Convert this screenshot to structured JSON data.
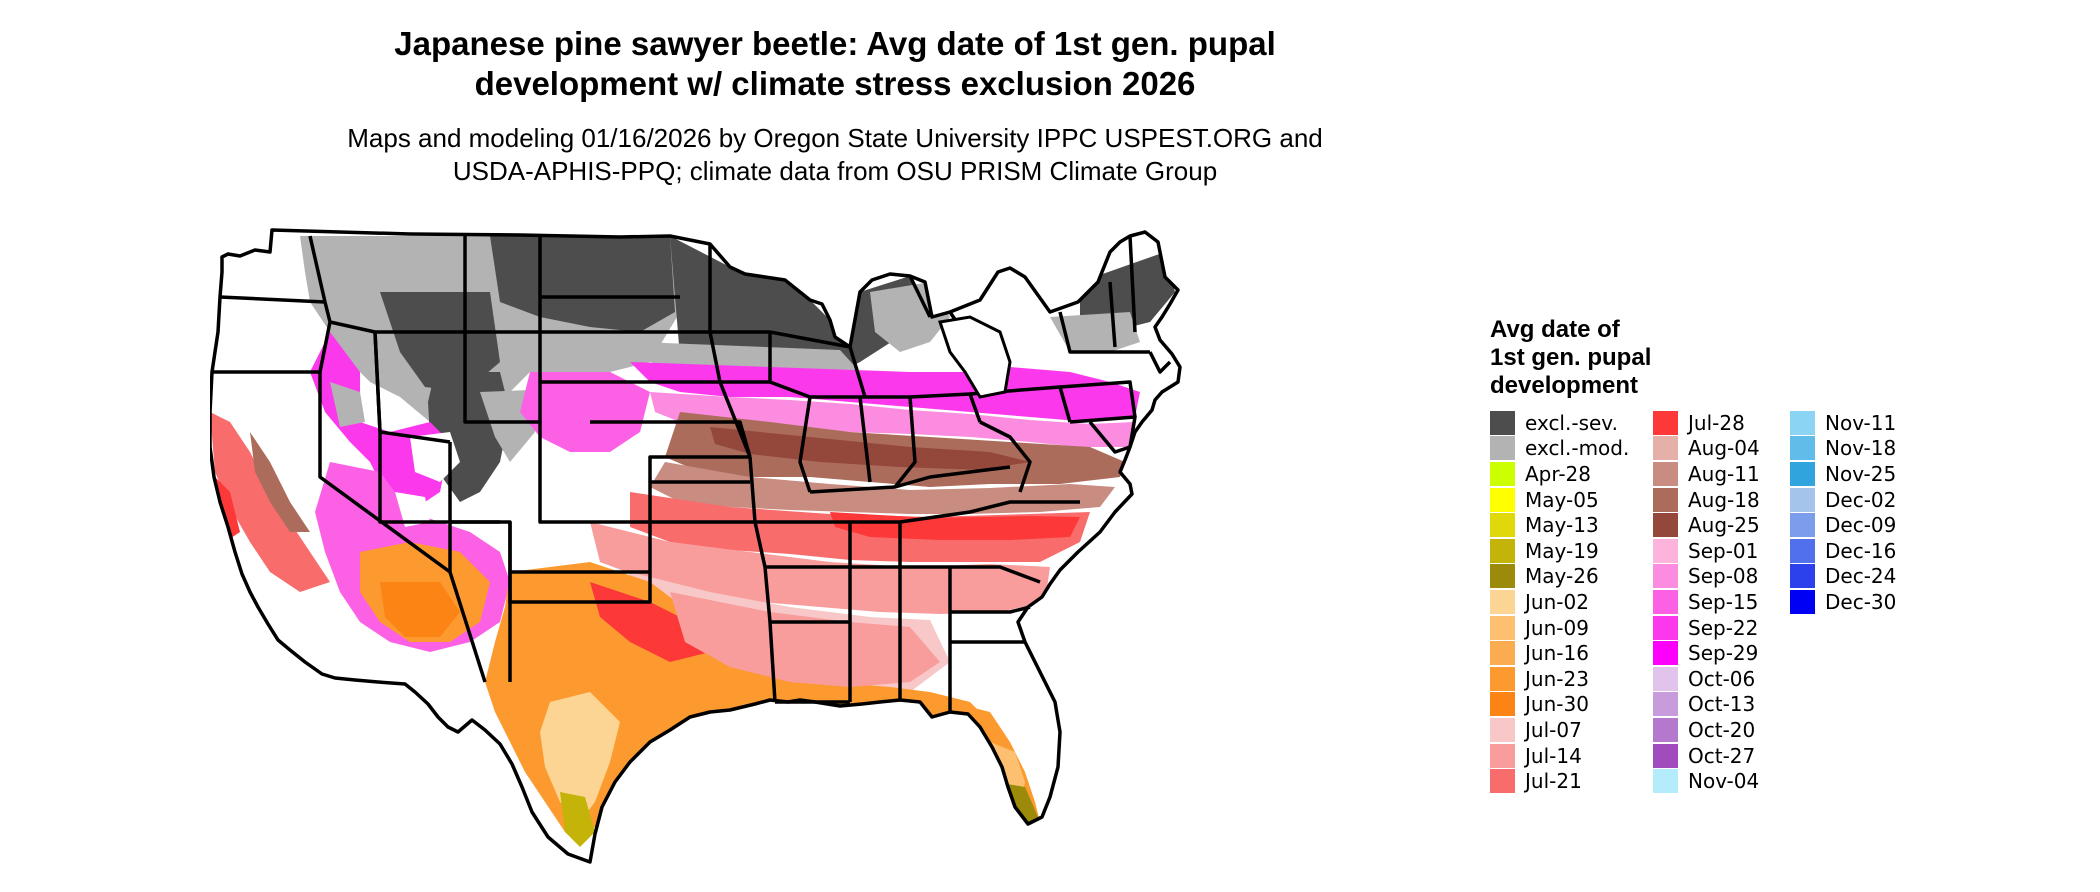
{
  "title_line1": "Japanese pine sawyer beetle: Avg date of 1st gen. pupal",
  "title_line2": "development w/ climate stress exclusion 2026",
  "subtitle_line1": "Maps and modeling 01/16/2026 by Oregon State University IPPC USPEST.ORG and",
  "subtitle_line2": "USDA-APHIS-PPQ; climate data from OSU PRISM Climate Group",
  "legend": {
    "title_lines": [
      "Avg date of",
      "1st gen. pupal",
      "development"
    ],
    "columns": [
      [
        {
          "label": "excl.-sev.",
          "color": "#4d4d4d"
        },
        {
          "label": "excl.-mod.",
          "color": "#b3b3b3"
        },
        {
          "label": "Apr-28",
          "color": "#ccff00"
        },
        {
          "label": "May-05",
          "color": "#ffff00"
        },
        {
          "label": "May-13",
          "color": "#e0d80a"
        },
        {
          "label": "May-19",
          "color": "#c4b40a"
        },
        {
          "label": "May-26",
          "color": "#9c8a0a"
        },
        {
          "label": "Jun-02",
          "color": "#fcd494"
        },
        {
          "label": "Jun-09",
          "color": "#fcc070"
        },
        {
          "label": "Jun-16",
          "color": "#fcac50"
        },
        {
          "label": "Jun-23",
          "color": "#fc9a30"
        },
        {
          "label": "Jun-30",
          "color": "#fc8414"
        },
        {
          "label": "Jul-07",
          "color": "#f8c8c8"
        },
        {
          "label": "Jul-14",
          "color": "#f89c9c"
        },
        {
          "label": "Jul-21",
          "color": "#f86c6c"
        }
      ],
      [
        {
          "label": "Jul-28",
          "color": "#fc3838"
        },
        {
          "label": "Aug-04",
          "color": "#e4b0a8"
        },
        {
          "label": "Aug-11",
          "color": "#c88c80"
        },
        {
          "label": "Aug-18",
          "color": "#ac6c5c"
        },
        {
          "label": "Aug-25",
          "color": "#94483c"
        },
        {
          "label": "Sep-01",
          "color": "#fcb4dc"
        },
        {
          "label": "Sep-08",
          "color": "#fc8ce0"
        },
        {
          "label": "Sep-15",
          "color": "#fc60e4"
        },
        {
          "label": "Sep-22",
          "color": "#fc38ec"
        },
        {
          "label": "Sep-29",
          "color": "#fc00fc"
        },
        {
          "label": "Oct-06",
          "color": "#e0c4ec"
        },
        {
          "label": "Oct-13",
          "color": "#c89cdc"
        },
        {
          "label": "Oct-20",
          "color": "#b478cc"
        },
        {
          "label": "Oct-27",
          "color": "#a04cbc"
        },
        {
          "label": "Nov-04",
          "color": "#b4ecfc"
        }
      ],
      [
        {
          "label": "Nov-11",
          "color": "#8cd4f4"
        },
        {
          "label": "Nov-18",
          "color": "#60bce8"
        },
        {
          "label": "Nov-25",
          "color": "#30a4dc"
        },
        {
          "label": "Dec-02",
          "color": "#a4c4ec"
        },
        {
          "label": "Dec-09",
          "color": "#7c9cec"
        },
        {
          "label": "Dec-16",
          "color": "#5070ec"
        },
        {
          "label": "Dec-24",
          "color": "#2c40ec"
        },
        {
          "label": "Dec-30",
          "color": "#0000f4"
        }
      ]
    ]
  }
}
